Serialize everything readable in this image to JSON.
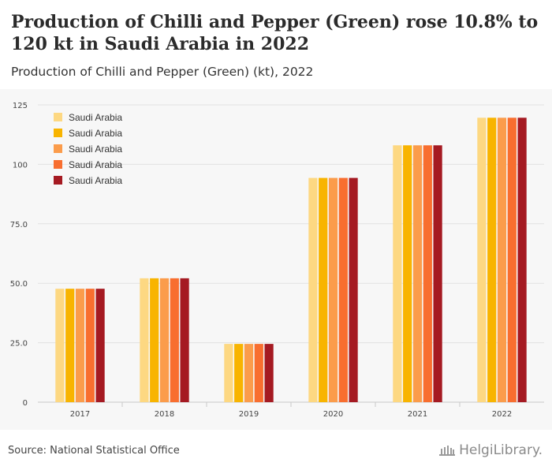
{
  "header": {
    "title": "Production of Chilli and Pepper (Green) rose 10.8% to 120 kt in Saudi Arabia in 2022",
    "subtitle": "Production of Chilli and Pepper (Green) (kt), 2022"
  },
  "footer": {
    "source": "Source: National Statistical Office",
    "logo_text": "HelgiLibrary."
  },
  "chart_data": {
    "type": "bar",
    "categories": [
      "2017",
      "2018",
      "2019",
      "2020",
      "2021",
      "2022"
    ],
    "ylim": [
      0,
      125
    ],
    "yticks": [
      "0",
      "25.0",
      "50.0",
      "75.0",
      "100",
      "125"
    ],
    "ytick_values": [
      0,
      25,
      50,
      75,
      100,
      125
    ],
    "grid": true,
    "legend_position": "top-left",
    "series": [
      {
        "name": "Saudi Arabia",
        "color": "#FDD882",
        "values": [
          47.7,
          52.1,
          24.5,
          94.3,
          108.0,
          119.6
        ]
      },
      {
        "name": "Saudi Arabia",
        "color": "#F8B400",
        "values": [
          47.7,
          52.1,
          24.5,
          94.3,
          108.0,
          119.6
        ]
      },
      {
        "name": "Saudi Arabia",
        "color": "#FB9C4B",
        "values": [
          47.7,
          52.1,
          24.5,
          94.3,
          108.0,
          119.6
        ]
      },
      {
        "name": "Saudi Arabia",
        "color": "#F86E2F",
        "values": [
          47.7,
          52.1,
          24.5,
          94.3,
          108.0,
          119.6
        ]
      },
      {
        "name": "Saudi Arabia",
        "color": "#A51A22",
        "values": [
          47.7,
          52.1,
          24.5,
          94.3,
          108.0,
          119.6
        ]
      }
    ]
  }
}
